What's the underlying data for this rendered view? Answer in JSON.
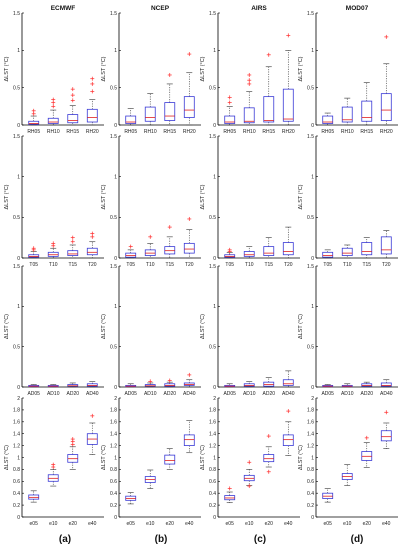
{
  "columns": [
    "ECMWF",
    "NCEP",
    "AIRS",
    "MOD07"
  ],
  "panel_labels": [
    "(a)",
    "(b)",
    "(c)",
    "(d)"
  ],
  "chart_data": [
    {
      "type": "box",
      "row": 1,
      "ylabel": "ΔLST (°C)",
      "ylim": [
        0,
        1.5
      ],
      "yticks": [
        0,
        0.5,
        1,
        1.5
      ],
      "categories": [
        "RH05",
        "RH10",
        "RH15",
        "RH20"
      ],
      "panels": [
        {
          "column": "ECMWF",
          "boxes": [
            {
              "whislo": 0,
              "q1": 0.01,
              "med": 0.02,
              "q3": 0.05,
              "whishi": 0.12,
              "fliers": [
                0.15,
                0.19
              ]
            },
            {
              "whislo": 0,
              "q1": 0.02,
              "med": 0.04,
              "q3": 0.09,
              "whishi": 0.2,
              "fliers": [
                0.25,
                0.3,
                0.34
              ]
            },
            {
              "whislo": 0,
              "q1": 0.03,
              "med": 0.06,
              "q3": 0.14,
              "whishi": 0.26,
              "fliers": [
                0.33,
                0.4,
                0.48
              ]
            },
            {
              "whislo": 0,
              "q1": 0.04,
              "med": 0.1,
              "q3": 0.21,
              "whishi": 0.34,
              "fliers": [
                0.45,
                0.55,
                0.62
              ]
            }
          ]
        },
        {
          "column": "NCEP",
          "boxes": [
            {
              "whislo": 0,
              "q1": 0.02,
              "med": 0.04,
              "q3": 0.12,
              "whishi": 0.22,
              "fliers": []
            },
            {
              "whislo": 0,
              "q1": 0.05,
              "med": 0.1,
              "q3": 0.24,
              "whishi": 0.42,
              "fliers": []
            },
            {
              "whislo": 0,
              "q1": 0.06,
              "med": 0.12,
              "q3": 0.3,
              "whishi": 0.55,
              "fliers": [
                0.67
              ]
            },
            {
              "whislo": 0,
              "q1": 0.1,
              "med": 0.2,
              "q3": 0.38,
              "whishi": 0.7,
              "fliers": [
                0.95
              ]
            }
          ]
        },
        {
          "column": "AIRS",
          "boxes": [
            {
              "whislo": 0,
              "q1": 0.02,
              "med": 0.04,
              "q3": 0.12,
              "whishi": 0.25,
              "fliers": [
                0.3,
                0.37
              ]
            },
            {
              "whislo": 0,
              "q1": 0.03,
              "med": 0.05,
              "q3": 0.23,
              "whishi": 0.45,
              "fliers": [
                0.55,
                0.6,
                0.67
              ]
            },
            {
              "whislo": 0,
              "q1": 0.04,
              "med": 0.06,
              "q3": 0.38,
              "whishi": 0.78,
              "fliers": [
                0.94
              ]
            },
            {
              "whislo": 0,
              "q1": 0.05,
              "med": 0.08,
              "q3": 0.48,
              "whishi": 1.0,
              "fliers": [
                1.2
              ]
            }
          ]
        },
        {
          "column": "MOD07",
          "boxes": [
            {
              "whislo": 0,
              "q1": 0.02,
              "med": 0.04,
              "q3": 0.12,
              "whishi": 0.16,
              "fliers": []
            },
            {
              "whislo": 0,
              "q1": 0.04,
              "med": 0.07,
              "q3": 0.24,
              "whishi": 0.36,
              "fliers": []
            },
            {
              "whislo": 0,
              "q1": 0.05,
              "med": 0.1,
              "q3": 0.32,
              "whishi": 0.57,
              "fliers": []
            },
            {
              "whislo": 0,
              "q1": 0.06,
              "med": 0.2,
              "q3": 0.42,
              "whishi": 0.82,
              "fliers": [
                1.18
              ]
            }
          ]
        }
      ]
    },
    {
      "type": "box",
      "row": 2,
      "ylabel": "ΔLST (°C)",
      "ylim": [
        0,
        1.5
      ],
      "yticks": [
        0,
        0.5,
        1,
        1.5
      ],
      "categories": [
        "T05",
        "T10",
        "T15",
        "T20"
      ],
      "panels": [
        {
          "column": "ECMWF",
          "boxes": [
            {
              "whislo": 0,
              "q1": 0.01,
              "med": 0.02,
              "q3": 0.04,
              "whishi": 0.08,
              "fliers": [
                0.1,
                0.12
              ]
            },
            {
              "whislo": 0,
              "q1": 0.02,
              "med": 0.04,
              "q3": 0.07,
              "whishi": 0.12,
              "fliers": [
                0.15,
                0.18
              ]
            },
            {
              "whislo": 0,
              "q1": 0.03,
              "med": 0.05,
              "q3": 0.09,
              "whishi": 0.16,
              "fliers": [
                0.2,
                0.25
              ]
            },
            {
              "whislo": 0,
              "q1": 0.04,
              "med": 0.07,
              "q3": 0.12,
              "whishi": 0.2,
              "fliers": [
                0.26,
                0.3
              ]
            }
          ]
        },
        {
          "column": "NCEP",
          "boxes": [
            {
              "whislo": 0,
              "q1": 0.01,
              "med": 0.03,
              "q3": 0.06,
              "whishi": 0.1,
              "fliers": [
                0.14
              ]
            },
            {
              "whislo": 0,
              "q1": 0.03,
              "med": 0.06,
              "q3": 0.1,
              "whishi": 0.18,
              "fliers": [
                0.26
              ]
            },
            {
              "whislo": 0,
              "q1": 0.05,
              "med": 0.09,
              "q3": 0.14,
              "whishi": 0.26,
              "fliers": [
                0.38
              ]
            },
            {
              "whislo": 0,
              "q1": 0.06,
              "med": 0.11,
              "q3": 0.18,
              "whishi": 0.35,
              "fliers": [
                0.48
              ]
            }
          ]
        },
        {
          "column": "AIRS",
          "boxes": [
            {
              "whislo": 0,
              "q1": 0.01,
              "med": 0.02,
              "q3": 0.04,
              "whishi": 0.07,
              "fliers": [
                0.08,
                0.1
              ]
            },
            {
              "whislo": 0,
              "q1": 0.02,
              "med": 0.04,
              "q3": 0.08,
              "whishi": 0.14,
              "fliers": []
            },
            {
              "whislo": 0,
              "q1": 0.03,
              "med": 0.06,
              "q3": 0.14,
              "whishi": 0.25,
              "fliers": []
            },
            {
              "whislo": 0,
              "q1": 0.04,
              "med": 0.08,
              "q3": 0.19,
              "whishi": 0.38,
              "fliers": []
            }
          ]
        },
        {
          "column": "MOD07",
          "boxes": [
            {
              "whislo": 0,
              "q1": 0.01,
              "med": 0.03,
              "q3": 0.07,
              "whishi": 0.1,
              "fliers": []
            },
            {
              "whislo": 0,
              "q1": 0.03,
              "med": 0.06,
              "q3": 0.12,
              "whishi": 0.16,
              "fliers": []
            },
            {
              "whislo": 0,
              "q1": 0.04,
              "med": 0.08,
              "q3": 0.19,
              "whishi": 0.25,
              "fliers": []
            },
            {
              "whislo": 0,
              "q1": 0.05,
              "med": 0.1,
              "q3": 0.26,
              "whishi": 0.34,
              "fliers": []
            }
          ]
        }
      ]
    },
    {
      "type": "box",
      "row": 3,
      "ylabel": "ΔLST (°C)",
      "ylim": [
        0,
        1.5
      ],
      "yticks": [
        0,
        0.5,
        1,
        1.5
      ],
      "categories": [
        "AD05",
        "AD10",
        "AD20",
        "AD40"
      ],
      "panels": [
        {
          "column": "ECMWF",
          "boxes": [
            {
              "whislo": 0,
              "q1": 0.005,
              "med": 0.01,
              "q3": 0.02,
              "whishi": 0.03,
              "fliers": []
            },
            {
              "whislo": 0,
              "q1": 0.005,
              "med": 0.01,
              "q3": 0.02,
              "whishi": 0.03,
              "fliers": []
            },
            {
              "whislo": 0,
              "q1": 0.01,
              "med": 0.015,
              "q3": 0.03,
              "whishi": 0.05,
              "fliers": []
            },
            {
              "whislo": 0,
              "q1": 0.01,
              "med": 0.02,
              "q3": 0.04,
              "whishi": 0.07,
              "fliers": []
            }
          ]
        },
        {
          "column": "NCEP",
          "boxes": [
            {
              "whislo": 0,
              "q1": 0.005,
              "med": 0.01,
              "q3": 0.02,
              "whishi": 0.04,
              "fliers": []
            },
            {
              "whislo": 0,
              "q1": 0.01,
              "med": 0.015,
              "q3": 0.03,
              "whishi": 0.05,
              "fliers": [
                0.07
              ]
            },
            {
              "whislo": 0,
              "q1": 0.01,
              "med": 0.02,
              "q3": 0.04,
              "whishi": 0.06,
              "fliers": [
                0.08
              ]
            },
            {
              "whislo": 0,
              "q1": 0.02,
              "med": 0.03,
              "q3": 0.05,
              "whishi": 0.09,
              "fliers": [
                0.15
              ]
            }
          ]
        },
        {
          "column": "AIRS",
          "boxes": [
            {
              "whislo": 0,
              "q1": 0.005,
              "med": 0.01,
              "q3": 0.02,
              "whishi": 0.04,
              "fliers": []
            },
            {
              "whislo": 0,
              "q1": 0.01,
              "med": 0.02,
              "q3": 0.04,
              "whishi": 0.07,
              "fliers": []
            },
            {
              "whislo": 0,
              "q1": 0.01,
              "med": 0.03,
              "q3": 0.06,
              "whishi": 0.12,
              "fliers": []
            },
            {
              "whislo": 0,
              "q1": 0.02,
              "med": 0.04,
              "q3": 0.09,
              "whishi": 0.2,
              "fliers": []
            }
          ]
        },
        {
          "column": "MOD07",
          "boxes": [
            {
              "whislo": 0,
              "q1": 0.005,
              "med": 0.01,
              "q3": 0.02,
              "whishi": 0.03,
              "fliers": []
            },
            {
              "whislo": 0,
              "q1": 0.005,
              "med": 0.01,
              "q3": 0.02,
              "whishi": 0.04,
              "fliers": []
            },
            {
              "whislo": 0,
              "q1": 0.01,
              "med": 0.02,
              "q3": 0.04,
              "whishi": 0.06,
              "fliers": []
            },
            {
              "whislo": 0,
              "q1": 0.01,
              "med": 0.02,
              "q3": 0.05,
              "whishi": 0.09,
              "fliers": []
            }
          ]
        }
      ]
    },
    {
      "type": "box",
      "row": 4,
      "ylabel": "ΔLST (°C)",
      "ylim": [
        0,
        2
      ],
      "yticks": [
        0,
        0.2,
        0.4,
        0.6,
        0.8,
        1,
        1.2,
        1.4,
        1.6,
        1.8,
        2
      ],
      "categories": [
        "e05",
        "e10",
        "e20",
        "e40"
      ],
      "panels": [
        {
          "column": "ECMWF",
          "boxes": [
            {
              "whislo": 0.25,
              "q1": 0.3,
              "med": 0.33,
              "q3": 0.37,
              "whishi": 0.44,
              "fliers": []
            },
            {
              "whislo": 0.52,
              "q1": 0.6,
              "med": 0.65,
              "q3": 0.71,
              "whishi": 0.8,
              "fliers": [
                0.84,
                0.88
              ]
            },
            {
              "whislo": 0.8,
              "q1": 0.92,
              "med": 0.98,
              "q3": 1.05,
              "whishi": 1.18,
              "fliers": [
                1.22,
                1.27,
                1.31
              ]
            },
            {
              "whislo": 1.05,
              "q1": 1.22,
              "med": 1.31,
              "q3": 1.4,
              "whishi": 1.58,
              "fliers": [
                1.7
              ]
            }
          ]
        },
        {
          "column": "NCEP",
          "boxes": [
            {
              "whislo": 0.22,
              "q1": 0.28,
              "med": 0.31,
              "q3": 0.35,
              "whishi": 0.41,
              "fliers": []
            },
            {
              "whislo": 0.48,
              "q1": 0.58,
              "med": 0.63,
              "q3": 0.68,
              "whishi": 0.79,
              "fliers": []
            },
            {
              "whislo": 0.8,
              "q1": 0.89,
              "med": 0.95,
              "q3": 1.04,
              "whishi": 1.15,
              "fliers": []
            },
            {
              "whislo": 1.08,
              "q1": 1.2,
              "med": 1.3,
              "q3": 1.38,
              "whishi": 1.62,
              "fliers": []
            }
          ]
        },
        {
          "column": "AIRS",
          "boxes": [
            {
              "whislo": 0.24,
              "q1": 0.29,
              "med": 0.32,
              "q3": 0.36,
              "whishi": 0.42,
              "fliers": [
                0.48
              ]
            },
            {
              "whislo": 0.53,
              "q1": 0.61,
              "med": 0.65,
              "q3": 0.7,
              "whishi": 0.8,
              "fliers": [
                0.52,
                0.92
              ]
            },
            {
              "whislo": 0.84,
              "q1": 0.93,
              "med": 0.98,
              "q3": 1.05,
              "whishi": 1.18,
              "fliers": [
                0.76,
                1.36
              ]
            },
            {
              "whislo": 1.03,
              "q1": 1.2,
              "med": 1.3,
              "q3": 1.38,
              "whishi": 1.6,
              "fliers": [
                1.78
              ]
            }
          ]
        },
        {
          "column": "MOD07",
          "boxes": [
            {
              "whislo": 0.25,
              "q1": 0.31,
              "med": 0.35,
              "q3": 0.4,
              "whishi": 0.48,
              "fliers": []
            },
            {
              "whislo": 0.53,
              "q1": 0.63,
              "med": 0.68,
              "q3": 0.73,
              "whishi": 0.88,
              "fliers": []
            },
            {
              "whislo": 0.83,
              "q1": 0.95,
              "med": 1.02,
              "q3": 1.1,
              "whishi": 1.25,
              "fliers": [
                1.33
              ]
            },
            {
              "whislo": 1.15,
              "q1": 1.28,
              "med": 1.35,
              "q3": 1.45,
              "whishi": 1.58,
              "fliers": [
                1.76
              ]
            }
          ]
        }
      ]
    }
  ]
}
